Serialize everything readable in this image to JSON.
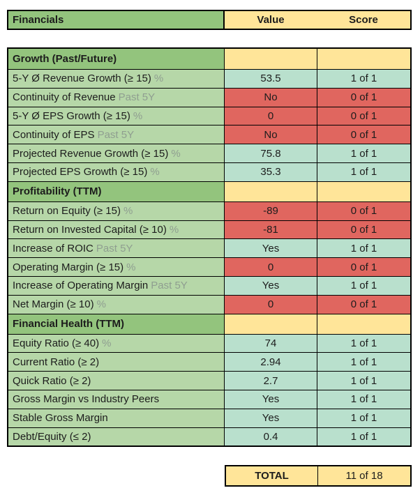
{
  "colors": {
    "section_green": "#93c47d",
    "row_green": "#b6d7a8",
    "header_yellow": "#ffe599",
    "pass_green": "#b9e0cd",
    "fail_red": "#e0665f",
    "text_dark": "#1c1c1c",
    "text_gray": "#8f9e90",
    "border": "#000000"
  },
  "chart_data": {
    "type": "table",
    "title": "Financials",
    "columns": [
      "Financials",
      "Value",
      "Score"
    ],
    "legend": {
      "pass_color": "#b9e0cd",
      "fail_color": "#e0665f"
    },
    "sections": [
      {
        "title": "Growth (Past/Future)",
        "rows": [
          {
            "label": "5-Y Ø Revenue Growth (≥ 15)",
            "suffix": "%",
            "value": "53.5",
            "score": "1 of 1",
            "status": "pass"
          },
          {
            "label": "Continuity of Revenue",
            "suffix": "Past 5Y",
            "value": "No",
            "score": "0 of 1",
            "status": "fail"
          },
          {
            "label": "5-Y Ø EPS Growth (≥ 15)",
            "suffix": "%",
            "value": "0",
            "score": "0 of 1",
            "status": "fail"
          },
          {
            "label": "Continuity of EPS",
            "suffix": "Past 5Y",
            "value": "No",
            "score": "0 of 1",
            "status": "fail"
          },
          {
            "label": "Projected Revenue Growth (≥ 15)",
            "suffix": "%",
            "value": "75.8",
            "score": "1 of 1",
            "status": "pass"
          },
          {
            "label": "Projected EPS Growth (≥ 15)",
            "suffix": "%",
            "value": "35.3",
            "score": "1 of 1",
            "status": "pass"
          }
        ]
      },
      {
        "title": "Profitability (TTM)",
        "rows": [
          {
            "label": "Return on Equity (≥ 15)",
            "suffix": "%",
            "value": "-89",
            "score": "0 of 1",
            "status": "fail"
          },
          {
            "label": "Return on Invested Capital (≥ 10)",
            "suffix": "%",
            "value": "-81",
            "score": "0 of 1",
            "status": "fail"
          },
          {
            "label": "Increase of ROIC",
            "suffix": "Past 5Y",
            "value": "Yes",
            "score": "1 of 1",
            "status": "pass"
          },
          {
            "label": "Operating Margin (≥ 15)",
            "suffix": "%",
            "value": "0",
            "score": "0 of 1",
            "status": "fail"
          },
          {
            "label": "Increase of Operating Margin",
            "suffix": "Past 5Y",
            "value": "Yes",
            "score": "1 of 1",
            "status": "pass"
          },
          {
            "label": "Net Margin (≥ 10)",
            "suffix": "%",
            "value": "0",
            "score": "0 of 1",
            "status": "fail"
          }
        ]
      },
      {
        "title": "Financial Health (TTM)",
        "rows": [
          {
            "label": "Equity Ratio (≥ 40)",
            "suffix": "%",
            "value": "74",
            "score": "1 of 1",
            "status": "pass"
          },
          {
            "label": "Current Ratio (≥ 2)",
            "suffix": "",
            "value": "2.94",
            "score": "1 of 1",
            "status": "pass"
          },
          {
            "label": "Quick Ratio (≥ 2)",
            "suffix": "",
            "value": "2.7",
            "score": "1 of 1",
            "status": "pass"
          },
          {
            "label": "Gross Margin vs Industry Peers",
            "suffix": "",
            "value": "Yes",
            "score": "1 of 1",
            "status": "pass"
          },
          {
            "label": "Stable Gross Margin",
            "suffix": "",
            "value": "Yes",
            "score": "1 of 1",
            "status": "pass"
          },
          {
            "label": "Debt/Equity (≤ 2)",
            "suffix": "",
            "value": "0.4",
            "score": "1 of 1",
            "status": "pass"
          }
        ]
      }
    ],
    "total": {
      "label": "TOTAL",
      "score": "11 of 18"
    }
  }
}
